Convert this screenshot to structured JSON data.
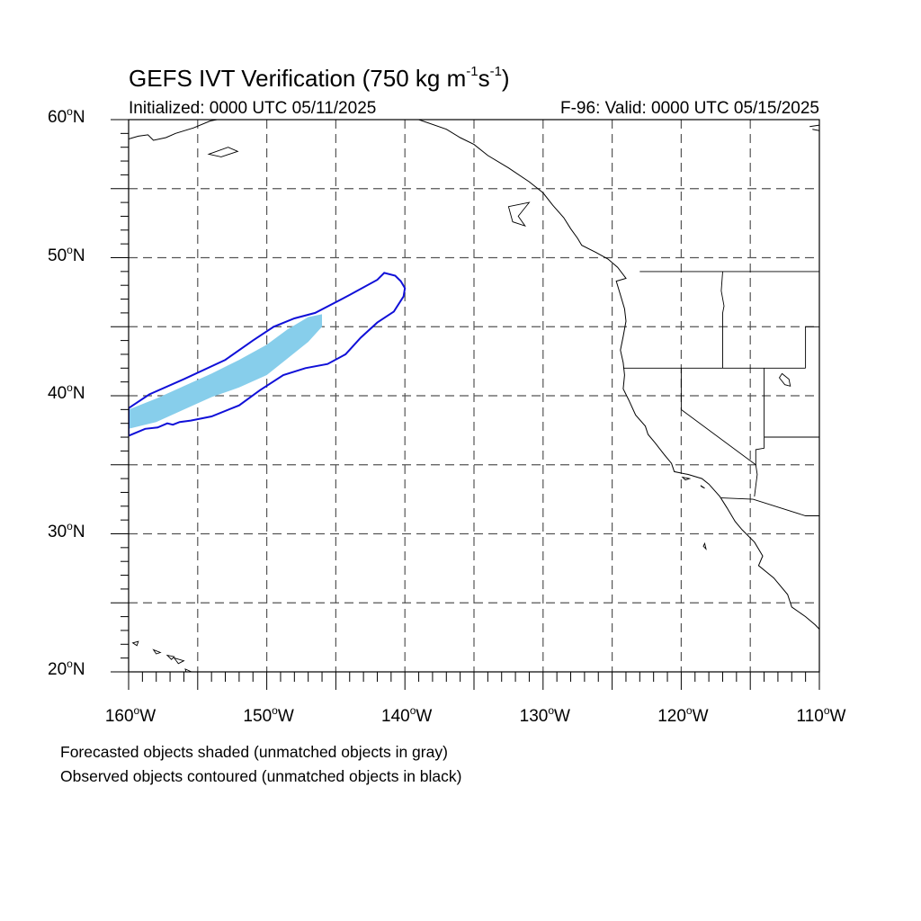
{
  "title": {
    "main": "GEFS IVT Verification (750 kg m",
    "sup1": "-1",
    "mid": "s",
    "sup2": "-1",
    "end": ")"
  },
  "subtitle_left": "Initialized: 0000 UTC 05/11/2025",
  "subtitle_right": "F-96: Valid: 0000 UTC 05/15/2025",
  "lat_labels": [
    {
      "num": "60",
      "deg": "o",
      "hem": "N",
      "value": 60
    },
    {
      "num": "50",
      "deg": "o",
      "hem": "N",
      "value": 50
    },
    {
      "num": "40",
      "deg": "o",
      "hem": "N",
      "value": 40
    },
    {
      "num": "30",
      "deg": "o",
      "hem": "N",
      "value": 30
    },
    {
      "num": "20",
      "deg": "o",
      "hem": "N",
      "value": 20
    }
  ],
  "lon_labels": [
    {
      "num": "160",
      "deg": "o",
      "hem": "W",
      "value": -160
    },
    {
      "num": "150",
      "deg": "o",
      "hem": "W",
      "value": -150
    },
    {
      "num": "140",
      "deg": "o",
      "hem": "W",
      "value": -140
    },
    {
      "num": "130",
      "deg": "o",
      "hem": "W",
      "value": -130
    },
    {
      "num": "120",
      "deg": "o",
      "hem": "W",
      "value": -120
    },
    {
      "num": "110",
      "deg": "o",
      "hem": "W",
      "value": -110
    }
  ],
  "notes": [
    "Forecasted objects shaded (unmatched objects in gray)",
    "Observed objects contoured (unmatched objects in black)"
  ],
  "map": {
    "extent": {
      "lon_min": -160,
      "lon_max": -110,
      "lat_min": 20,
      "lat_max": 60
    },
    "grid_lon_step": 5,
    "grid_lat_step": 5,
    "colors": {
      "forecast_fill": "#87ceeb",
      "observed_contour": "#1010d8",
      "coast": "#000000",
      "grid": "#555555"
    },
    "forecast_object": [
      [
        -160,
        37.6
      ],
      [
        -158,
        38.1
      ],
      [
        -156,
        39.0
      ],
      [
        -154,
        39.9
      ],
      [
        -152,
        40.6
      ],
      [
        -150,
        41.5
      ],
      [
        -148.5,
        42.7
      ],
      [
        -147,
        43.9
      ],
      [
        -146,
        45.0
      ],
      [
        -146,
        45.9
      ],
      [
        -147,
        45.7
      ],
      [
        -148.5,
        44.8
      ],
      [
        -150,
        43.7
      ],
      [
        -152,
        42.6
      ],
      [
        -154,
        41.6
      ],
      [
        -156,
        40.7
      ],
      [
        -158,
        39.8
      ],
      [
        -160,
        39.0
      ]
    ],
    "observed_object": [
      [
        -160,
        39.1
      ],
      [
        -158.5,
        40.1
      ],
      [
        -156,
        41.2
      ],
      [
        -153,
        42.6
      ],
      [
        -151,
        44.0
      ],
      [
        -149.5,
        45.0
      ],
      [
        -148,
        45.6
      ],
      [
        -146.5,
        46.0
      ],
      [
        -144,
        47.3
      ],
      [
        -142,
        48.4
      ],
      [
        -141.5,
        48.9
      ],
      [
        -140.7,
        48.7
      ],
      [
        -140.3,
        48.3
      ],
      [
        -140,
        47.8
      ],
      [
        -140.1,
        47.2
      ],
      [
        -140.8,
        46.1
      ],
      [
        -142,
        45.3
      ],
      [
        -143.2,
        44.2
      ],
      [
        -144.3,
        43.0
      ],
      [
        -145.6,
        42.3
      ],
      [
        -147.2,
        42.0
      ],
      [
        -148.8,
        41.5
      ],
      [
        -150.5,
        40.4
      ],
      [
        -152,
        39.3
      ],
      [
        -154,
        38.5
      ],
      [
        -155.5,
        38.2
      ],
      [
        -156.3,
        38.1
      ],
      [
        -156.8,
        37.9
      ],
      [
        -157.2,
        38.0
      ],
      [
        -157.9,
        37.7
      ],
      [
        -158.8,
        37.6
      ],
      [
        -160,
        37.1
      ]
    ],
    "coastline": [
      [
        -139,
        60
      ],
      [
        -137,
        59.3
      ],
      [
        -136,
        58.7
      ],
      [
        -135,
        58.2
      ],
      [
        -134,
        57.4
      ],
      [
        -132.5,
        56.5
      ],
      [
        -131,
        55.5
      ],
      [
        -130,
        54.7
      ],
      [
        -129.3,
        53.8
      ],
      [
        -128.5,
        52.9
      ],
      [
        -128,
        52.1
      ],
      [
        -127.5,
        51.4
      ],
      [
        -127.2,
        50.9
      ],
      [
        -126.2,
        50.4
      ],
      [
        -125.3,
        49.9
      ],
      [
        -124.6,
        49.3
      ],
      [
        -124,
        48.5
      ],
      [
        -124.7,
        48.3
      ],
      [
        -124.4,
        47.3
      ],
      [
        -124.1,
        46.3
      ],
      [
        -124.0,
        45.4
      ],
      [
        -124.2,
        44.3
      ],
      [
        -124.4,
        43.3
      ],
      [
        -124.2,
        42.4
      ],
      [
        -124.1,
        41.5
      ],
      [
        -124.2,
        40.5
      ],
      [
        -123.8,
        39.7
      ],
      [
        -123.3,
        38.6
      ],
      [
        -122.6,
        37.8
      ],
      [
        -122.4,
        37.2
      ],
      [
        -121.9,
        36.6
      ],
      [
        -121.2,
        35.7
      ],
      [
        -120.7,
        35.1
      ],
      [
        -120.5,
        34.5
      ],
      [
        -119.5,
        34.3
      ],
      [
        -118.5,
        34.0
      ],
      [
        -118.0,
        33.6
      ],
      [
        -117.2,
        32.7
      ],
      [
        -116.7,
        31.9
      ],
      [
        -116.1,
        30.9
      ],
      [
        -115.6,
        30.3
      ],
      [
        -114.7,
        29.4
      ],
      [
        -114.1,
        28.4
      ],
      [
        -114.4,
        27.7
      ],
      [
        -113.3,
        26.8
      ],
      [
        -112.3,
        25.6
      ],
      [
        -112.0,
        24.7
      ],
      [
        -111.0,
        24.0
      ],
      [
        -110.3,
        23.4
      ],
      [
        -109.9,
        23.0
      ]
    ],
    "state_borders": [
      [
        [
          -123,
          49
        ],
        [
          -110,
          49
        ]
      ],
      [
        [
          -124.2,
          42
        ],
        [
          -111,
          42
        ]
      ],
      [
        [
          -117,
          42
        ],
        [
          -117,
          46
        ],
        [
          -116.9,
          46.5
        ],
        [
          -117.1,
          47.6
        ],
        [
          -117,
          49
        ]
      ],
      [
        [
          -120,
          42
        ],
        [
          -120,
          39
        ],
        [
          -114.6,
          35
        ],
        [
          -114.5,
          34.3
        ],
        [
          -114.7,
          32.7
        ]
      ],
      [
        [
          -114,
          42
        ],
        [
          -114,
          36.2
        ],
        [
          -114.6,
          36.1
        ],
        [
          -114.6,
          35
        ]
      ],
      [
        [
          -117.1,
          32.6
        ],
        [
          -114.8,
          32.5
        ],
        [
          -111,
          31.3
        ],
        [
          -110,
          31.3
        ]
      ],
      [
        [
          -111,
          42
        ],
        [
          -111,
          45
        ],
        [
          -110,
          45
        ]
      ],
      [
        [
          -114,
          37
        ],
        [
          -110,
          37
        ]
      ]
    ],
    "lakes": [
      [
        [
          -112.7,
          41.6
        ],
        [
          -112.2,
          41.2
        ],
        [
          -112.1,
          40.7
        ],
        [
          -112.5,
          40.8
        ],
        [
          -112.9,
          41.3
        ],
        [
          -112.7,
          41.6
        ]
      ]
    ],
    "islands": [
      [
        [
          -159.7,
          22.1
        ],
        [
          -159.3,
          22.2
        ],
        [
          -159.4,
          21.9
        ],
        [
          -159.7,
          22.1
        ]
      ],
      [
        [
          -158.2,
          21.6
        ],
        [
          -157.7,
          21.4
        ],
        [
          -158.0,
          21.3
        ],
        [
          -158.2,
          21.6
        ]
      ],
      [
        [
          -157.2,
          21.2
        ],
        [
          -156.7,
          21.1
        ],
        [
          -156.9,
          20.9
        ],
        [
          -157.2,
          21.2
        ]
      ],
      [
        [
          -156.7,
          21.0
        ],
        [
          -156.0,
          20.8
        ],
        [
          -156.4,
          20.6
        ],
        [
          -156.7,
          21.0
        ]
      ],
      [
        [
          -155.9,
          20.2
        ],
        [
          -155.0,
          19.8
        ],
        [
          -155.6,
          19.0
        ],
        [
          -155.9,
          20.2
        ]
      ],
      [
        [
          -118.6,
          33.5
        ],
        [
          -118.3,
          33.3
        ],
        [
          -118.5,
          33.4
        ],
        [
          -118.6,
          33.5
        ]
      ],
      [
        [
          -119.9,
          34.1
        ],
        [
          -119.4,
          34.0
        ],
        [
          -119.7,
          33.9
        ],
        [
          -119.9,
          34.1
        ]
      ],
      [
        [
          -118.3,
          29.3
        ],
        [
          -118.2,
          28.9
        ],
        [
          -118.4,
          29.1
        ],
        [
          -118.3,
          29.3
        ]
      ],
      [
        [
          -131,
          54
        ],
        [
          -132.5,
          53.7
        ],
        [
          -132.2,
          52.6
        ],
        [
          -131.3,
          52.3
        ],
        [
          -131.8,
          53.0
        ],
        [
          -131,
          54
        ]
      ],
      [
        [
          -152.8,
          58.0
        ],
        [
          -152.1,
          57.7
        ],
        [
          -153.3,
          57.3
        ],
        [
          -154.2,
          57.5
        ],
        [
          -152.8,
          58.0
        ]
      ]
    ],
    "alaska_coast": [
      [
        -160,
        58.6
      ],
      [
        -159.3,
        58.8
      ],
      [
        -158.6,
        58.9
      ],
      [
        -158.2,
        58.5
      ],
      [
        -157.3,
        58.7
      ],
      [
        -156.6,
        59.0
      ],
      [
        -155.3,
        59.4
      ],
      [
        -154.1,
        59.9
      ],
      [
        -153.6,
        60
      ]
    ],
    "hudson_coast": [
      [
        -110.7,
        59.5
      ],
      [
        -110,
        59.6
      ],
      [
        -110,
        59.2
      ],
      [
        -110.5,
        59.3
      ]
    ]
  }
}
